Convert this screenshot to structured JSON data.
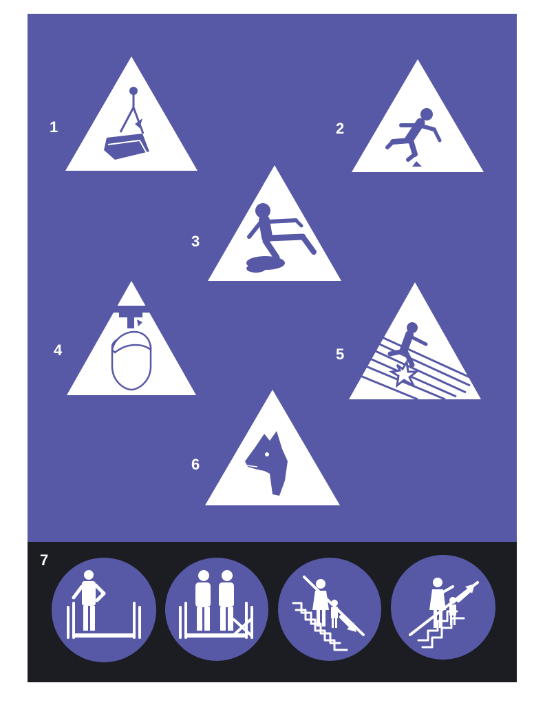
{
  "colors": {
    "panel": "#5759a6",
    "band": "#1b1d22",
    "sign": "#ffffff",
    "symbol": "#5759a6"
  },
  "signs": [
    {
      "number": "1",
      "icon": "suspended-load-icon"
    },
    {
      "number": "2",
      "icon": "tripping-person-icon"
    },
    {
      "number": "3",
      "icon": "slipping-person-icon"
    },
    {
      "number": "4",
      "icon": "head-bump-icon"
    },
    {
      "number": "5",
      "icon": "fragile-roof-icon"
    },
    {
      "number": "6",
      "icon": "guard-dog-icon"
    }
  ],
  "escalator": {
    "number": "7",
    "icons": [
      "escalator-stand-icon",
      "escalator-pair-icon",
      "escalator-down-icon",
      "escalator-up-icon"
    ]
  }
}
